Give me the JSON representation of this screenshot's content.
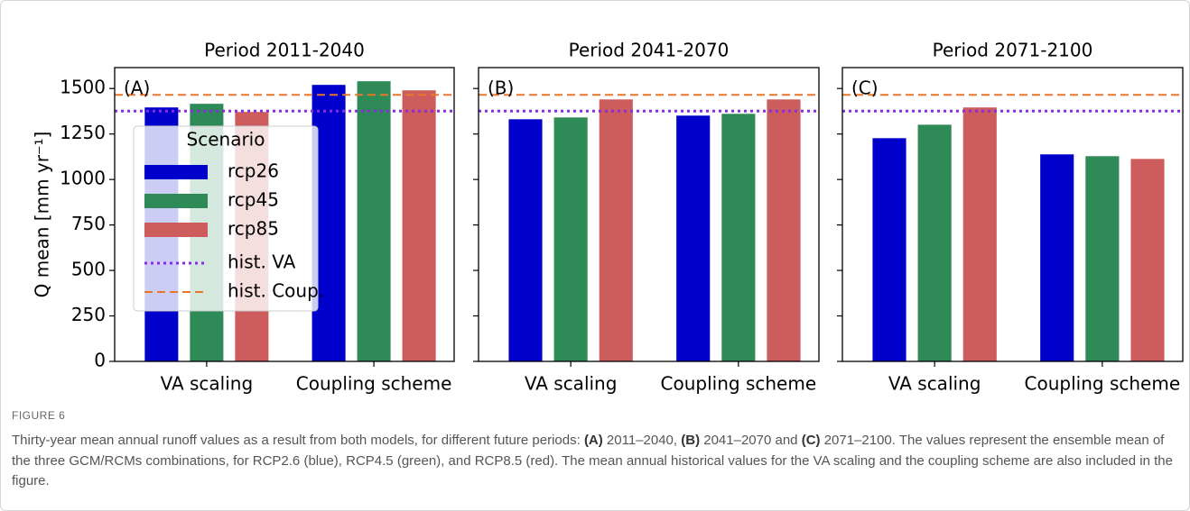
{
  "chart_data": [
    {
      "type": "bar",
      "title": "Period 2011-2040",
      "panel_label": "(A)",
      "ylabel": "Q mean [mm yr⁻¹]",
      "categories": [
        "VA scaling",
        "Coupling scheme"
      ],
      "series": [
        {
          "name": "rcp26",
          "color": "#0000cd",
          "values": [
            1396,
            1520
          ]
        },
        {
          "name": "rcp45",
          "color": "#2e8b57",
          "values": [
            1416,
            1540
          ]
        },
        {
          "name": "rcp85",
          "color": "#cd5c5c",
          "values": [
            1371,
            1490
          ]
        }
      ],
      "hlines": [
        {
          "name": "hist. VA",
          "value": 1376,
          "color": "#8a2be2",
          "style": "dotted"
        },
        {
          "name": "hist. Coup.",
          "value": 1465,
          "color": "#e8762b",
          "style": "dashed"
        }
      ],
      "ylim": [
        0,
        1615
      ],
      "yticks": [
        0,
        250,
        500,
        750,
        1000,
        1250,
        1500
      ],
      "legend": {
        "title": "Scenario",
        "loc": "center left"
      }
    },
    {
      "type": "bar",
      "title": "Period 2041-2070",
      "panel_label": "(B)",
      "categories": [
        "VA scaling",
        "Coupling scheme"
      ],
      "series": [
        {
          "color": "#0000cd",
          "values": [
            1331,
            1351
          ]
        },
        {
          "color": "#2e8b57",
          "values": [
            1341,
            1361
          ]
        },
        {
          "color": "#cd5c5c",
          "values": [
            1440,
            1440
          ]
        }
      ],
      "hlines": [
        {
          "value": 1376,
          "color": "#8a2be2",
          "style": "dotted"
        },
        {
          "value": 1465,
          "color": "#e8762b",
          "style": "dashed"
        }
      ],
      "ylim": [
        0,
        1615
      ]
    },
    {
      "type": "bar",
      "title": "Period 2071-2100",
      "panel_label": "(C)",
      "categories": [
        "VA scaling",
        "Coupling scheme"
      ],
      "series": [
        {
          "color": "#0000cd",
          "values": [
            1227,
            1138
          ]
        },
        {
          "color": "#2e8b57",
          "values": [
            1301,
            1128
          ]
        },
        {
          "color": "#cd5c5c",
          "values": [
            1396,
            1113
          ]
        }
      ],
      "hlines": [
        {
          "value": 1376,
          "color": "#8a2be2",
          "style": "dotted"
        },
        {
          "value": 1465,
          "color": "#e8762b",
          "style": "dashed"
        }
      ],
      "ylim": [
        0,
        1615
      ]
    }
  ],
  "figure_label": "FIGURE 6",
  "caption": [
    {
      "text": "Thirty-year mean annual runoff values as a result from both models, for different future periods: "
    },
    {
      "text": "(A)",
      "bold": true
    },
    {
      "text": " 2011–2040, "
    },
    {
      "text": "(B)",
      "bold": true
    },
    {
      "text": " 2041–2070 and "
    },
    {
      "text": "(C)",
      "bold": true
    },
    {
      "text": " 2071–2100. The values represent the ensemble mean of the three GCM/RCMs combinations, for RCP2.6 (blue), RCP4.5 (green), and RCP8.5 (red). The mean annual historical values for the VA scaling and the coupling scheme are also included in the figure."
    }
  ]
}
